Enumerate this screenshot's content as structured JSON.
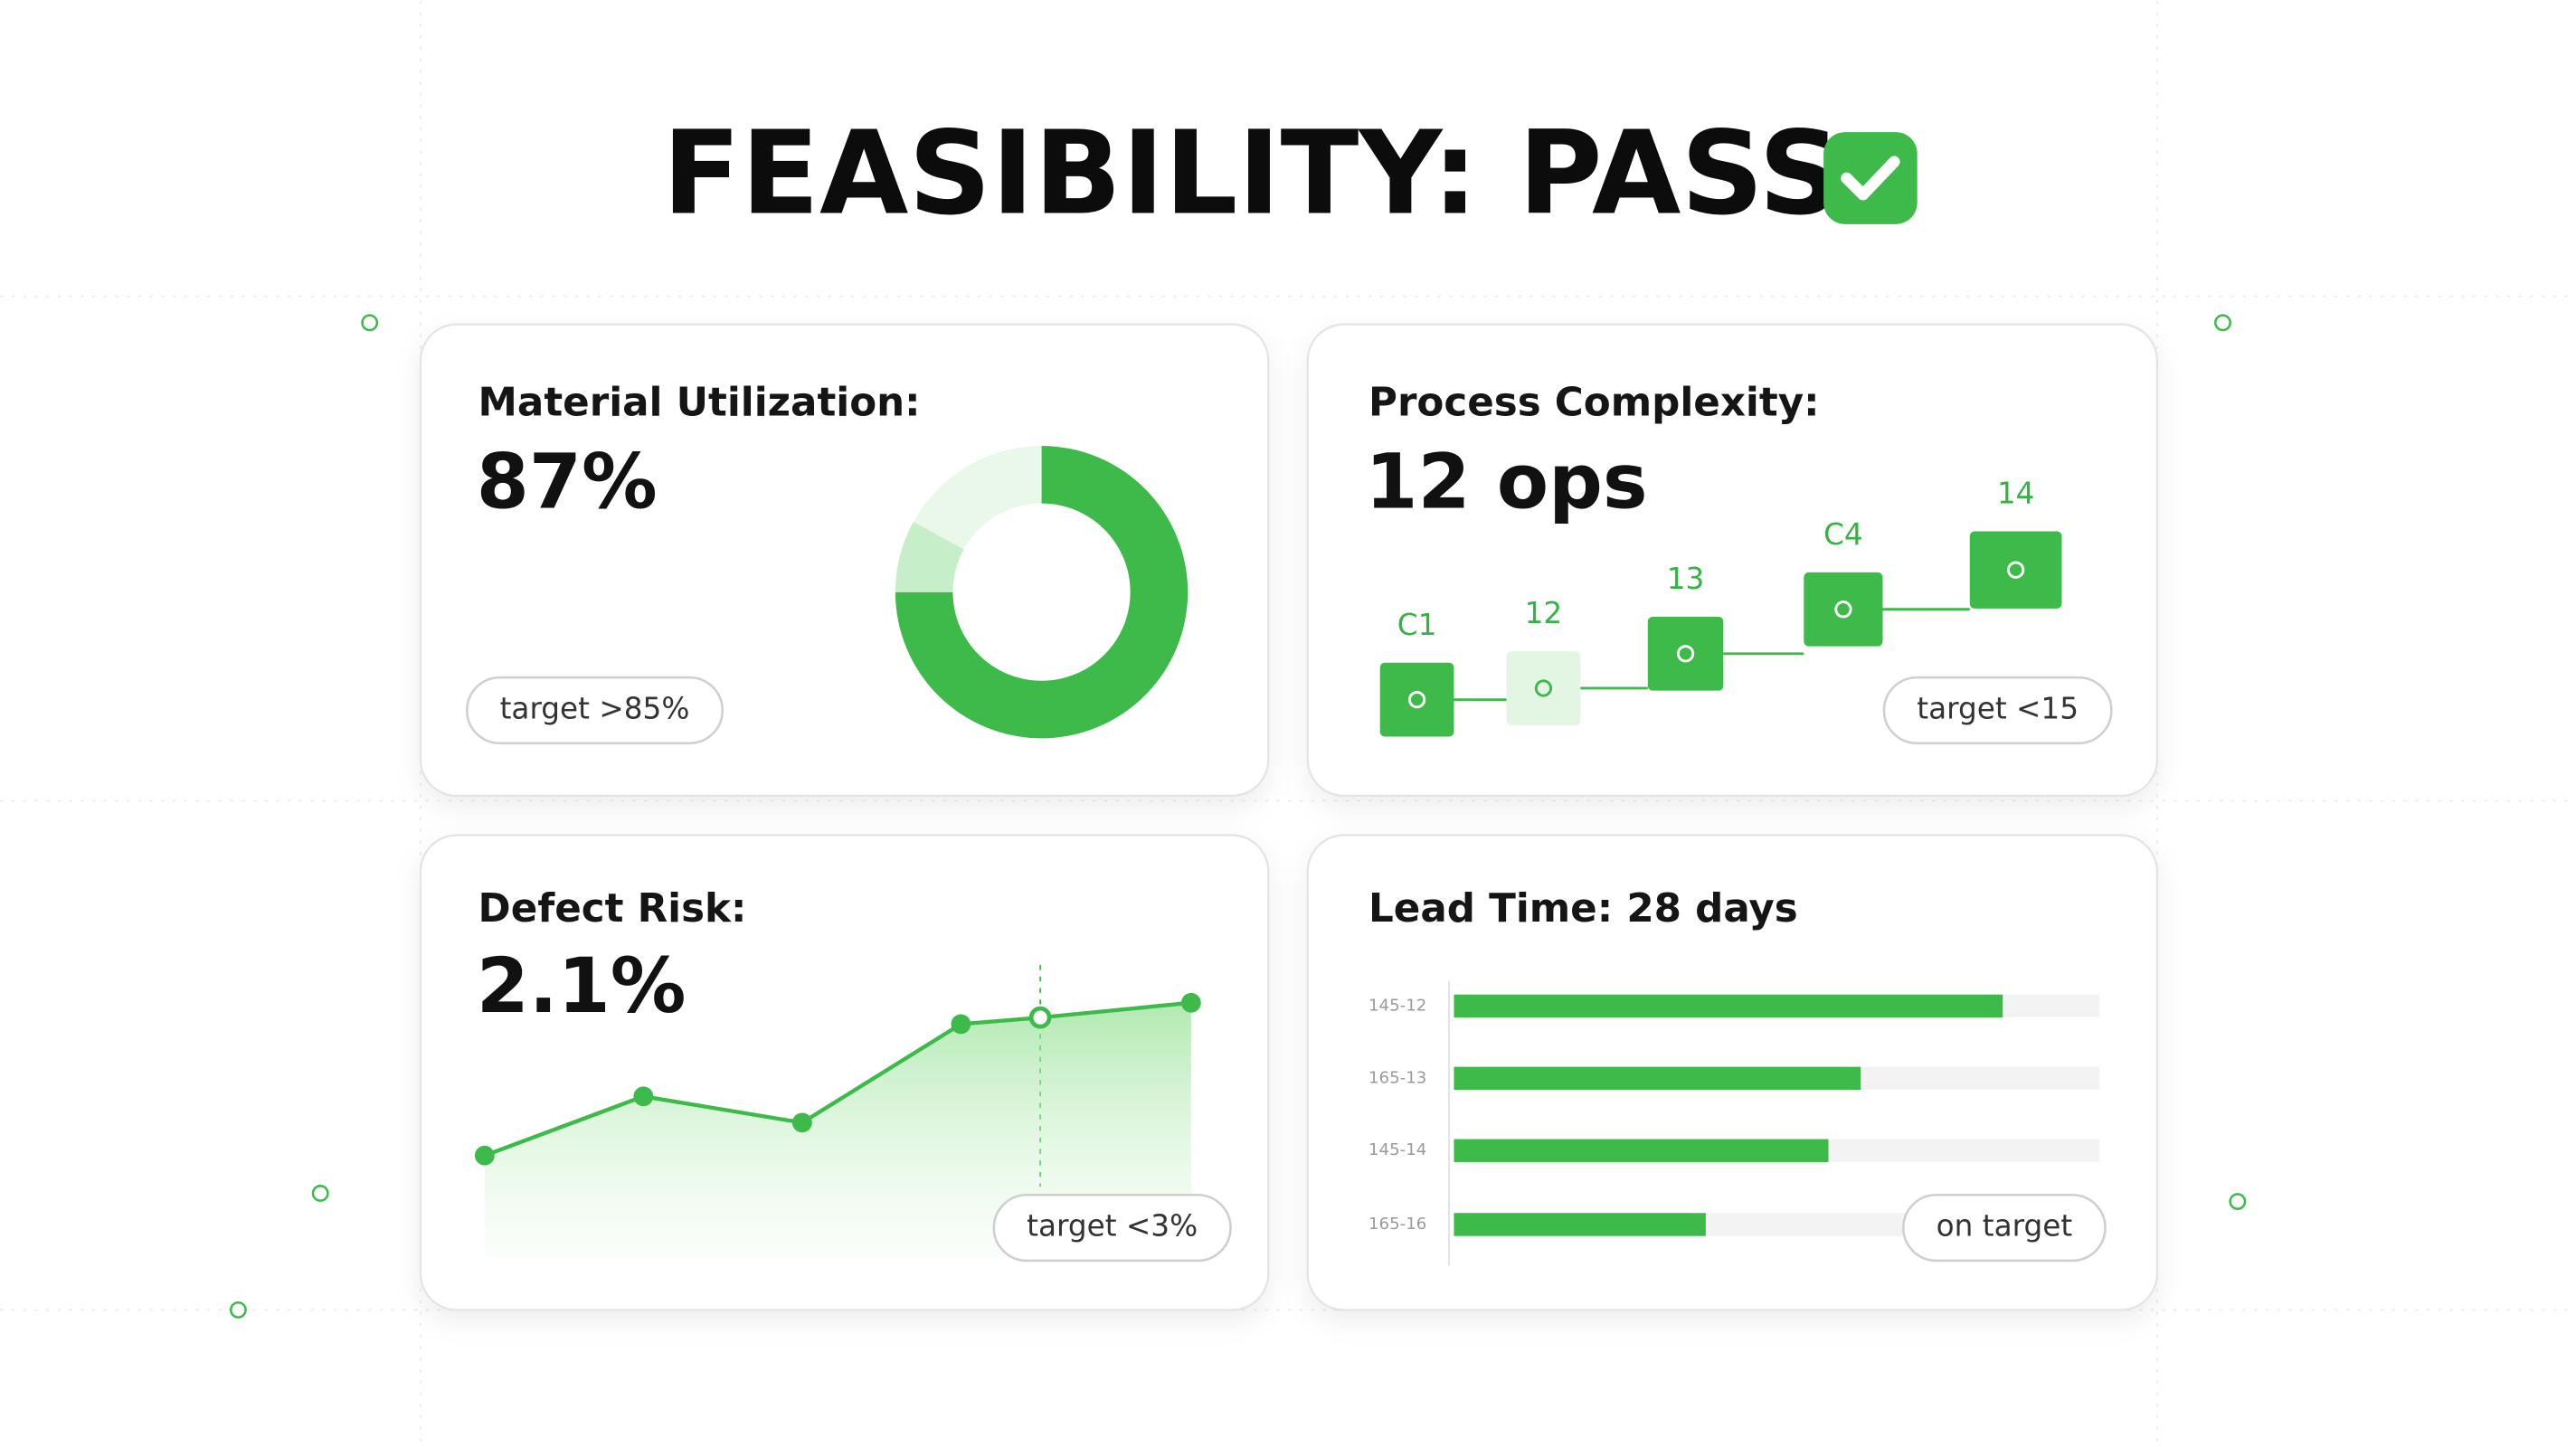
{
  "title": "FEASIBILITY: PASS",
  "cards": {
    "material": {
      "label": "Material Utilization:",
      "value": "87%",
      "badge": "target >85%",
      "donut": {
        "values": [
          75,
          8,
          17
        ],
        "colors": [
          "#3dba4a",
          "#c6eec8",
          "#eaf8ea"
        ]
      }
    },
    "process": {
      "label": "Process Complexity:",
      "value": "12 ops",
      "badge": "target <15",
      "steps": [
        "C1",
        "12",
        "13",
        "C4",
        "14"
      ]
    },
    "defect": {
      "label": "Defect Risk:",
      "value": "2.1%",
      "badge": "target <3%",
      "line": {
        "x": [
          0,
          1,
          2,
          3,
          3.5,
          4.45
        ],
        "values": [
          62,
          98,
          82,
          142,
          146,
          155
        ],
        "xlim": [
          0,
          4.45
        ],
        "ylim": [
          0,
          180
        ],
        "highlight": 4,
        "color": "#3dba4a"
      }
    },
    "lead": {
      "label": "Lead Time: 28 days",
      "badge": "on target",
      "bars": {
        "categories": [
          "145-12",
          "165-13",
          "145-14",
          "165-16"
        ],
        "values": [
          85,
          63,
          58,
          39
        ],
        "xlim": [
          0,
          100
        ],
        "color": "#3dba4a"
      }
    }
  }
}
